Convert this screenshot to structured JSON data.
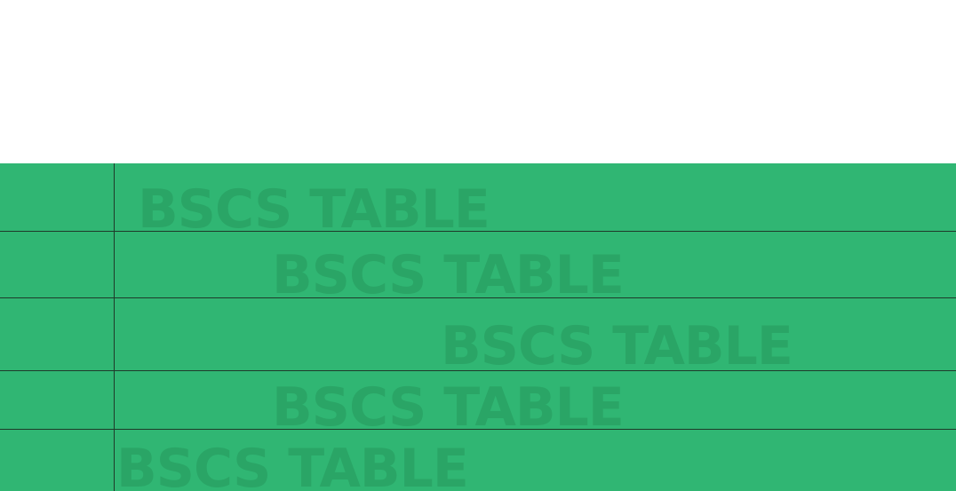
{
  "colors": {
    "table_background": "#30b673",
    "text": "#2aa566",
    "grid_lines": "#1f3a2a",
    "page_background": "#ffffff"
  },
  "rows": [
    {
      "label": "BSCS TABLE"
    },
    {
      "label": "BSCS TABLE"
    },
    {
      "label": "BSCS TABLE"
    },
    {
      "label": "BSCS TABLE"
    },
    {
      "label": "BSCS TABLE"
    }
  ]
}
